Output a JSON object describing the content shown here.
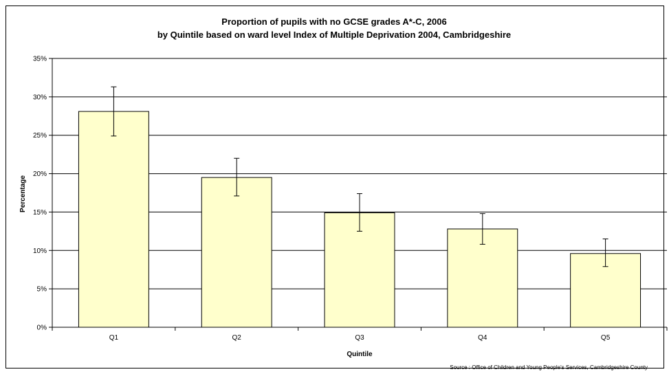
{
  "chart_data": {
    "type": "bar",
    "title_lines": [
      "Proportion of pupils with no GCSE grades A*-C, 2006",
      "by Quintile based on ward level Index of Multiple Deprivation 2004, Cambridgeshire"
    ],
    "xlabel": "Quintile",
    "ylabel": "Percentage",
    "categories": [
      "Q1",
      "Q2",
      "Q3",
      "Q4",
      "Q5"
    ],
    "values": [
      28.1,
      19.5,
      14.9,
      12.8,
      9.6
    ],
    "error_low": [
      24.9,
      17.1,
      12.5,
      10.8,
      7.9
    ],
    "error_high": [
      31.3,
      22.0,
      17.4,
      14.8,
      11.5
    ],
    "y_ticks": [
      "0%",
      "5%",
      "10%",
      "15%",
      "20%",
      "25%",
      "30%",
      "35%"
    ],
    "ylim": [
      0,
      35
    ],
    "y_unit": "%",
    "grid": true,
    "legend": "none",
    "bar_color": "#FFFFCC",
    "source": "Source :  Office of Children and Young People's Services, Cambridgeshire County"
  }
}
